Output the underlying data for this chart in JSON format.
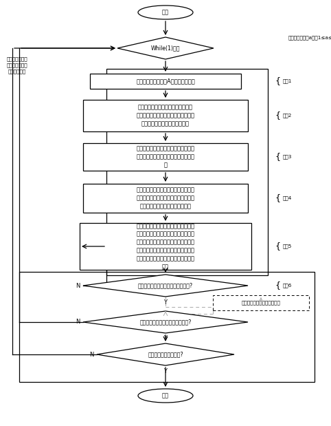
{
  "bg_color": "#ffffff",
  "line_color": "#000000",
  "dashed_color": "#aaaaaa",
  "text_color": "#000000",
  "font_size": 6.0,
  "small_font_size": 5.2,
  "start_label": "开始",
  "end_label": "结束",
  "while_label": "While(1)循环",
  "step1_label": "根据计算流程，启动A个应用功能进程",
  "step2_label": "应用功能制定计算方案，准备计算数\n据，根据应用功能的计算耗时特性，设\n定各个应用计算作业的调度粒度",
  "step3_label": "根据各个应用功能的计算任务预计执行\n时间，形成各个应用功能的计算任务序\n列",
  "step4_label": "分布式计算管理平台根据各个应用功能\n的计算优先级将其对应的计算任务序列\n添加到平台的计算任务调度队列中",
  "step5_label": "分布式计算管理平台对计算节点基于证\n空间距离度的原则，对计算任务调度队\n列按照应用动能的调度粒度进行计算作\n业组织，并添加到计算作业队列中，再\n下发给计算节点进行计算，并等待计算\n返回",
  "diamond1_label": "单个应用功能计算作业全部计算完成?",
  "result_label": "应用功能对计算结果进行处理",
  "diamond2_label": "所有启动的应用功能全部计算完成?",
  "diamond3_label": "所有计算流程执行完毕?",
  "side_text": "该应用功能不需\n要和分布式计算\n管理平台交互",
  "app_func_text": "应用功能进程（a）（1≤a≤A）",
  "step_labels": [
    "步骤1",
    "步骤2",
    "步骤3",
    "步骤4",
    "步骤5",
    "步骤6"
  ]
}
